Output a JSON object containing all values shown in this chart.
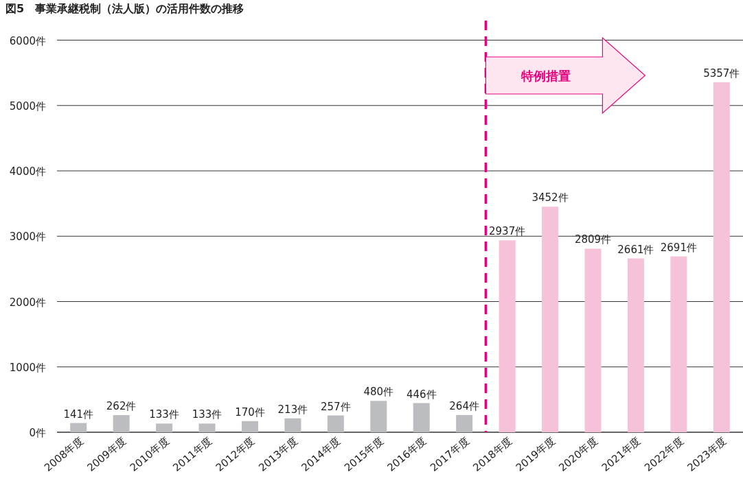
{
  "chart_data": {
    "type": "bar",
    "title": "図5　事業承継税制（法人版）の活用件数の推移",
    "categories": [
      "2008年度",
      "2009年度",
      "2010年度",
      "2011年度",
      "2012年度",
      "2013年度",
      "2014年度",
      "2015年度",
      "2016年度",
      "2017年度",
      "2018年度",
      "2019年度",
      "2020年度",
      "2021年度",
      "2022年度",
      "2023年度"
    ],
    "values": [
      141,
      262,
      133,
      133,
      170,
      213,
      257,
      480,
      446,
      264,
      2937,
      3452,
      2809,
      2661,
      2691,
      5357
    ],
    "colors": [
      "#bcbdc1",
      "#bcbdc1",
      "#bcbdc1",
      "#bcbdc1",
      "#bcbdc1",
      "#bcbdc1",
      "#bcbdc1",
      "#bcbdc1",
      "#bcbdc1",
      "#bcbdc1",
      "#f5c2da",
      "#f5c2da",
      "#f5c2da",
      "#f5c2da",
      "#f5c2da",
      "#f5c2da"
    ],
    "value_labels": [
      "141件",
      "262件",
      "133件",
      "133件",
      "170件",
      "213件",
      "257件",
      "480件",
      "446件",
      "264件",
      "2937件",
      "3452件",
      "2809件",
      "2661件",
      "2691件",
      "5357件"
    ],
    "ylim": [
      0,
      6300
    ],
    "yticks": [
      {
        "value": 0,
        "label": "0件"
      },
      {
        "value": 1000,
        "label": "1000件"
      },
      {
        "value": 2000,
        "label": "2000件"
      },
      {
        "value": 3000,
        "label": "3000件"
      },
      {
        "value": 4000,
        "label": "4000件"
      },
      {
        "value": 5000,
        "label": "5000件"
      },
      {
        "value": 6000,
        "label": "6000件"
      }
    ],
    "grid": "y",
    "ref_lines": [
      {
        "axis": "x",
        "value": "2018年度",
        "color": "#e6007e",
        "line_style": "dashed"
      }
    ],
    "annotations": [
      "特例措置"
    ]
  }
}
